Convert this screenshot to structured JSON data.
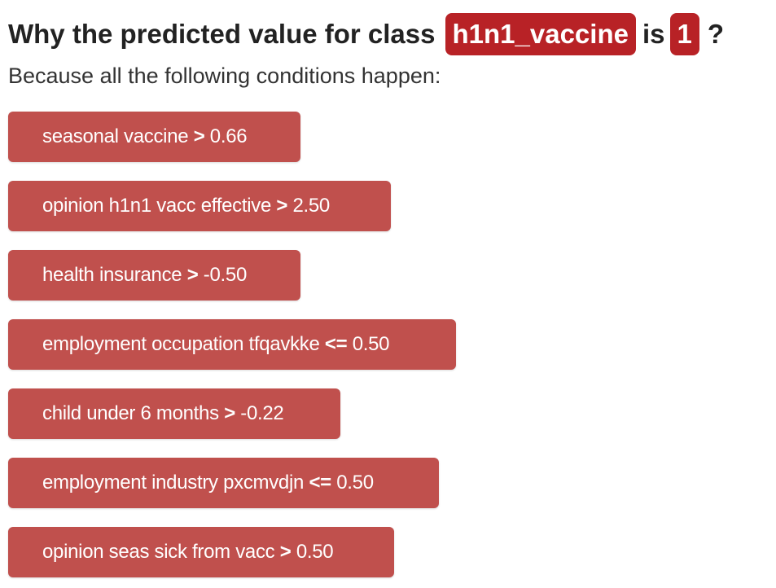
{
  "header": {
    "prefix": "Why the predicted value for class",
    "class_name": "h1n1_vaccine",
    "middle": "is",
    "predicted_value": "1",
    "suffix": "?"
  },
  "subtitle": "Because all the following conditions happen:",
  "colors": {
    "badge": "#b82226",
    "condition": "#c0504d"
  },
  "conditions": [
    {
      "feature": "seasonal vaccine",
      "operator": ">",
      "value": "0.66"
    },
    {
      "feature": "opinion h1n1 vacc effective",
      "operator": ">",
      "value": "2.50"
    },
    {
      "feature": "health insurance",
      "operator": ">",
      "value": "-0.50"
    },
    {
      "feature": "employment occupation tfqavkke",
      "operator": "<=",
      "value": "0.50"
    },
    {
      "feature": "child under 6 months",
      "operator": ">",
      "value": "-0.22"
    },
    {
      "feature": "employment industry pxcmvdjn",
      "operator": "<=",
      "value": "0.50"
    },
    {
      "feature": "opinion seas sick from vacc",
      "operator": ">",
      "value": "0.50"
    }
  ]
}
